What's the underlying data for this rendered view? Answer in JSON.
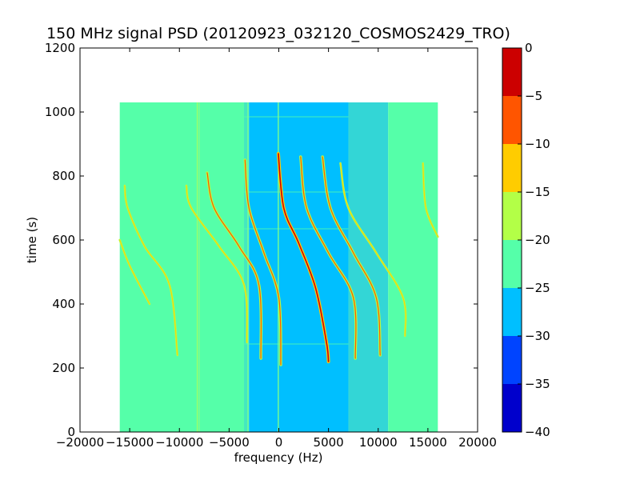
{
  "chart_data": {
    "type": "heatmap",
    "title": "150 MHz signal PSD (20120923_032120_COSMOS2429_TRO)",
    "xlabel": "frequency (Hz)",
    "ylabel": "time (s)",
    "xlim": [
      -20000,
      20000
    ],
    "ylim": [
      0,
      1200
    ],
    "x_ticks": [
      {
        "value": -20000,
        "label": "−20000"
      },
      {
        "value": -15000,
        "label": "−15000"
      },
      {
        "value": -10000,
        "label": "−10000"
      },
      {
        "value": -5000,
        "label": "−5000"
      },
      {
        "value": 0,
        "label": "0"
      },
      {
        "value": 5000,
        "label": "5000"
      },
      {
        "value": 10000,
        "label": "10000"
      },
      {
        "value": 15000,
        "label": "15000"
      },
      {
        "value": 20000,
        "label": "20000"
      }
    ],
    "y_ticks": [
      {
        "value": 0,
        "label": "0"
      },
      {
        "value": 200,
        "label": "200"
      },
      {
        "value": 400,
        "label": "400"
      },
      {
        "value": 600,
        "label": "600"
      },
      {
        "value": 800,
        "label": "800"
      },
      {
        "value": 1000,
        "label": "1000"
      },
      {
        "value": 1200,
        "label": "1200"
      }
    ],
    "data_extent": {
      "x": [
        -16000,
        16000
      ],
      "y": [
        0,
        1030
      ]
    },
    "background_regions": [
      {
        "x0": -16000,
        "x1": -3500,
        "color": "#55ffa9"
      },
      {
        "x0": -3500,
        "x1": -3000,
        "color": "#44e8c0"
      },
      {
        "x0": -3000,
        "x1": 7000,
        "color": "#00bfff"
      },
      {
        "x0": 7000,
        "x1": 11000,
        "color": "#33d6d6"
      },
      {
        "x0": 11000,
        "x1": 16000,
        "color": "#55ffa9"
      }
    ],
    "vertical_lines": [
      {
        "x": -8200,
        "y0": 0,
        "y1": 1030,
        "color": "#9cff6a"
      },
      {
        "x": -8000,
        "y0": 0,
        "y1": 1030,
        "color": "#7dff8c"
      },
      {
        "x": -3100,
        "y0": 0,
        "y1": 1030,
        "color": "#7dff8c"
      },
      {
        "x": -50,
        "y0": 0,
        "y1": 1030,
        "color": "#7dff8c"
      }
    ],
    "horizontal_lines": [
      {
        "y": 750,
        "x0": -3500,
        "x1": 7000,
        "color": "#55ffa9"
      },
      {
        "y": 635,
        "x0": -3500,
        "x1": 7000,
        "color": "#55ffa9"
      },
      {
        "y": 275,
        "x0": -3500,
        "x1": 7000,
        "color": "#55ffa9"
      },
      {
        "y": 985,
        "x0": -3500,
        "x1": 7000,
        "color": "#55ffa9"
      }
    ],
    "traces": [
      {
        "name": "",
        "strength": "strong",
        "points": [
          [
            -50,
            870
          ],
          [
            500,
            700
          ],
          [
            2000,
            590
          ],
          [
            3700,
            450
          ],
          [
            4800,
            280
          ],
          [
            5000,
            220
          ]
        ]
      },
      {
        "name": "",
        "strength": "medium",
        "points": [
          [
            -3400,
            850
          ],
          [
            -3000,
            700
          ],
          [
            -1500,
            560
          ],
          [
            0,
            420
          ],
          [
            200,
            210
          ]
        ]
      },
      {
        "name": "",
        "strength": "medium",
        "points": [
          [
            -7200,
            810
          ],
          [
            -6500,
            700
          ],
          [
            -4000,
            580
          ],
          [
            -2000,
            460
          ],
          [
            -1800,
            230
          ]
        ]
      },
      {
        "name": "",
        "strength": "medium",
        "points": [
          [
            2200,
            860
          ],
          [
            2800,
            700
          ],
          [
            5000,
            560
          ],
          [
            7500,
            420
          ],
          [
            7700,
            230
          ]
        ]
      },
      {
        "name": "",
        "strength": "medium",
        "points": [
          [
            4400,
            860
          ],
          [
            5200,
            700
          ],
          [
            7500,
            560
          ],
          [
            9800,
            420
          ],
          [
            10200,
            240
          ]
        ]
      },
      {
        "name": "",
        "strength": "weak",
        "points": [
          [
            6200,
            840
          ],
          [
            7000,
            700
          ],
          [
            9800,
            560
          ],
          [
            12500,
            420
          ],
          [
            12700,
            300
          ]
        ]
      },
      {
        "name": "",
        "strength": "weak",
        "points": [
          [
            -9300,
            770
          ],
          [
            -8800,
            700
          ],
          [
            -6000,
            580
          ],
          [
            -3500,
            460
          ],
          [
            -3200,
            280
          ]
        ]
      },
      {
        "name": "",
        "strength": "weak",
        "points": [
          [
            -15500,
            770
          ],
          [
            -15200,
            700
          ],
          [
            -13500,
            580
          ],
          [
            -11000,
            460
          ],
          [
            -10200,
            240
          ]
        ]
      },
      {
        "name": "",
        "strength": "weak",
        "points": [
          [
            -16000,
            600
          ],
          [
            -15000,
            520
          ],
          [
            -13000,
            400
          ]
        ]
      },
      {
        "name": "",
        "strength": "weak",
        "points": [
          [
            14500,
            840
          ],
          [
            14800,
            700
          ],
          [
            16000,
            610
          ]
        ]
      }
    ],
    "colorbar": {
      "min": -40,
      "max": 0,
      "ticks": [
        {
          "value": 0,
          "label": "0"
        },
        {
          "value": -5,
          "label": "−5"
        },
        {
          "value": -10,
          "label": "−10"
        },
        {
          "value": -15,
          "label": "−15"
        },
        {
          "value": -20,
          "label": "−20"
        },
        {
          "value": -25,
          "label": "−25"
        },
        {
          "value": -30,
          "label": "−30"
        },
        {
          "value": -35,
          "label": "−35"
        },
        {
          "value": -40,
          "label": "−40"
        }
      ],
      "bands": [
        {
          "from": -5,
          "to": 0,
          "color": "#cc0000"
        },
        {
          "from": -10,
          "to": -5,
          "color": "#ff5500"
        },
        {
          "from": -15,
          "to": -10,
          "color": "#ffcc00"
        },
        {
          "from": -20,
          "to": -15,
          "color": "#b3ff47"
        },
        {
          "from": -25,
          "to": -20,
          "color": "#55ffa9"
        },
        {
          "from": -30,
          "to": -25,
          "color": "#00bfff"
        },
        {
          "from": -35,
          "to": -30,
          "color": "#0044ff"
        },
        {
          "from": -40,
          "to": -35,
          "color": "#0000cc"
        }
      ]
    }
  }
}
